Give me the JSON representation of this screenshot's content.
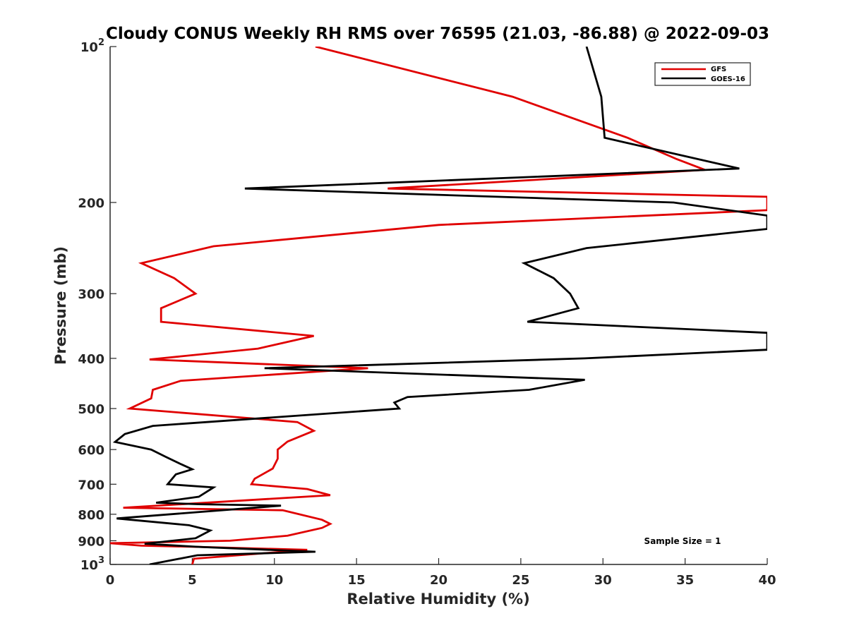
{
  "chart_data": {
    "type": "line",
    "title": "Cloudy CONUS Weekly RH RMS over 76595 (21.03, -86.88) @ 2022-09-03",
    "xlabel": "Relative Humidity (%)",
    "ylabel": "Pressure (mb)",
    "xlim": [
      0,
      40
    ],
    "ylim": [
      1000,
      100
    ],
    "yscale": "log",
    "y_reversed": true,
    "x_ticks": [
      {
        "value": 0,
        "label": "0"
      },
      {
        "value": 5,
        "label": "5"
      },
      {
        "value": 10,
        "label": "10"
      },
      {
        "value": 15,
        "label": "15"
      },
      {
        "value": 20,
        "label": "20"
      },
      {
        "value": 25,
        "label": "25"
      },
      {
        "value": 30,
        "label": "30"
      },
      {
        "value": 35,
        "label": "35"
      },
      {
        "value": 40,
        "label": "40"
      }
    ],
    "y_ticks": [
      {
        "value": 100,
        "base": "10",
        "exp": "2"
      },
      {
        "value": 200,
        "label": "200"
      },
      {
        "value": 300,
        "label": "300"
      },
      {
        "value": 400,
        "label": "400"
      },
      {
        "value": 500,
        "label": "500"
      },
      {
        "value": 600,
        "label": "600"
      },
      {
        "value": 700,
        "label": "700"
      },
      {
        "value": 800,
        "label": "800"
      },
      {
        "value": 900,
        "label": "900"
      },
      {
        "value": 1000,
        "base": "10",
        "exp": "3"
      }
    ],
    "legend": {
      "position": "top-right",
      "entries": [
        "GFS",
        "GOES-16"
      ]
    },
    "annotation": "Sample Size = 1",
    "grid": false,
    "series": [
      {
        "name": "GFS",
        "color": "#e00000",
        "points": [
          [
            12.5,
            100
          ],
          [
            24.5,
            125
          ],
          [
            31.5,
            150
          ],
          [
            34.5,
            165
          ],
          [
            36.2,
            173
          ],
          [
            16.9,
            188
          ],
          [
            40.0,
            195
          ],
          [
            40.0,
            207
          ],
          [
            20.0,
            221
          ],
          [
            6.3,
            243
          ],
          [
            1.9,
            262
          ],
          [
            3.9,
            280
          ],
          [
            5.2,
            300
          ],
          [
            3.1,
            320
          ],
          [
            3.1,
            340
          ],
          [
            12.4,
            362
          ],
          [
            9.0,
            383
          ],
          [
            2.4,
            402
          ],
          [
            15.7,
            418
          ],
          [
            4.3,
            442
          ],
          [
            2.6,
            460
          ],
          [
            2.5,
            478
          ],
          [
            1.2,
            500
          ],
          [
            11.4,
            531
          ],
          [
            12.4,
            552
          ],
          [
            10.8,
            579
          ],
          [
            10.2,
            600
          ],
          [
            10.2,
            625
          ],
          [
            9.9,
            653
          ],
          [
            8.8,
            683
          ],
          [
            8.6,
            700
          ],
          [
            12.0,
            715
          ],
          [
            13.4,
            735
          ],
          [
            0.8,
            777
          ],
          [
            10.5,
            786
          ],
          [
            12.9,
            820
          ],
          [
            13.4,
            835
          ],
          [
            12.9,
            850
          ],
          [
            10.8,
            880
          ],
          [
            7.3,
            900
          ],
          [
            0.0,
            910
          ],
          [
            1.9,
            920
          ],
          [
            5.4,
            925
          ],
          [
            12.0,
            937
          ],
          [
            5.1,
            975
          ],
          [
            5.0,
            1000
          ]
        ]
      },
      {
        "name": "GOES-16",
        "color": "#000000",
        "points": [
          [
            29.0,
            100
          ],
          [
            29.9,
            125
          ],
          [
            30.1,
            150
          ],
          [
            38.3,
            172
          ],
          [
            8.2,
            188
          ],
          [
            34.3,
            200
          ],
          [
            40.0,
            212
          ],
          [
            40.0,
            225
          ],
          [
            29.0,
            245
          ],
          [
            25.2,
            262
          ],
          [
            27.0,
            280
          ],
          [
            28.0,
            300
          ],
          [
            28.5,
            320
          ],
          [
            25.4,
            340
          ],
          [
            40.0,
            357
          ],
          [
            40.0,
            385
          ],
          [
            28.9,
            400
          ],
          [
            9.4,
            418
          ],
          [
            28.9,
            440
          ],
          [
            25.5,
            460
          ],
          [
            18.1,
            475
          ],
          [
            17.3,
            487
          ],
          [
            17.6,
            500
          ],
          [
            2.6,
            540
          ],
          [
            0.9,
            560
          ],
          [
            0.3,
            580
          ],
          [
            2.5,
            600
          ],
          [
            3.4,
            620
          ],
          [
            4.3,
            640
          ],
          [
            5.0,
            655
          ],
          [
            4.0,
            670
          ],
          [
            3.5,
            700
          ],
          [
            6.3,
            710
          ],
          [
            5.4,
            740
          ],
          [
            2.8,
            760
          ],
          [
            5.4,
            765
          ],
          [
            10.4,
            770
          ],
          [
            0.4,
            815
          ],
          [
            4.8,
            840
          ],
          [
            6.1,
            860
          ],
          [
            5.2,
            890
          ],
          [
            2.1,
            912
          ],
          [
            5.4,
            925
          ],
          [
            12.5,
            945
          ],
          [
            5.3,
            960
          ],
          [
            2.4,
            1000
          ]
        ]
      }
    ]
  }
}
